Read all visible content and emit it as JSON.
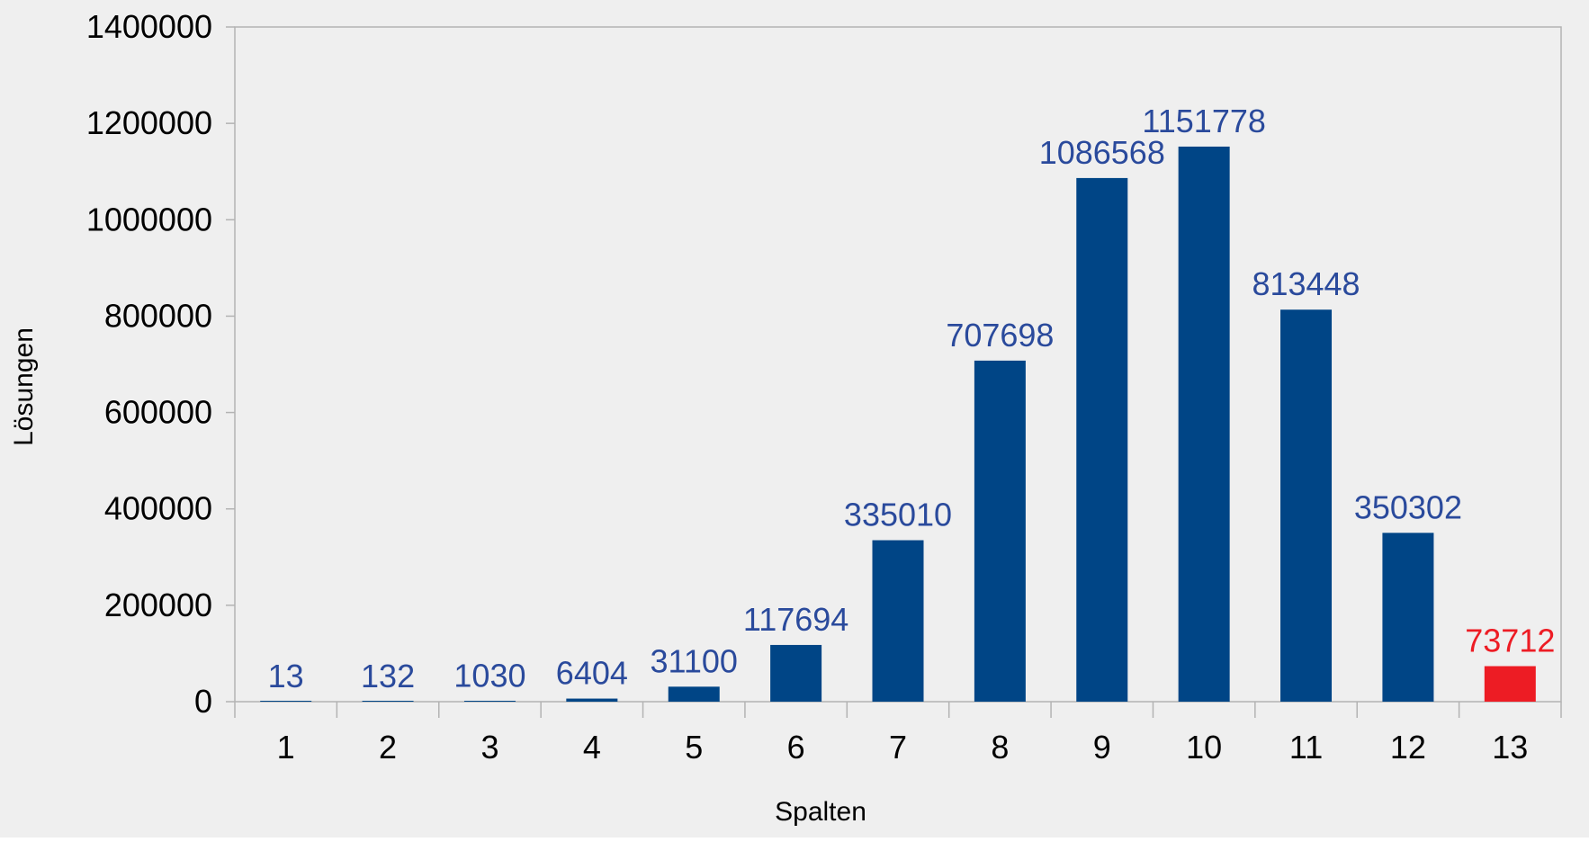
{
  "chart_data": {
    "type": "bar",
    "title": "",
    "xlabel": "Spalten",
    "ylabel": "Lösungen",
    "categories": [
      "1",
      "2",
      "3",
      "4",
      "5",
      "6",
      "7",
      "8",
      "9",
      "10",
      "11",
      "12",
      "13"
    ],
    "values": [
      13,
      132,
      1030,
      6404,
      31100,
      117694,
      335010,
      707698,
      1086568,
      1151778,
      813448,
      350302,
      73712
    ],
    "ylim": [
      0,
      1400000
    ],
    "yticks": [
      "0",
      "200000",
      "400000",
      "600000",
      "800000",
      "1000000",
      "1200000",
      "1400000"
    ],
    "grid": false,
    "legend": "none",
    "data_labels": true,
    "colors": {
      "background": "#efefef",
      "bar": "#004586",
      "highlight_bar": "#ed1c24",
      "label": "#2a4a9c",
      "highlight_label": "#ed1c24",
      "axis": "#b3b3b3"
    },
    "highlight_category": "13"
  }
}
